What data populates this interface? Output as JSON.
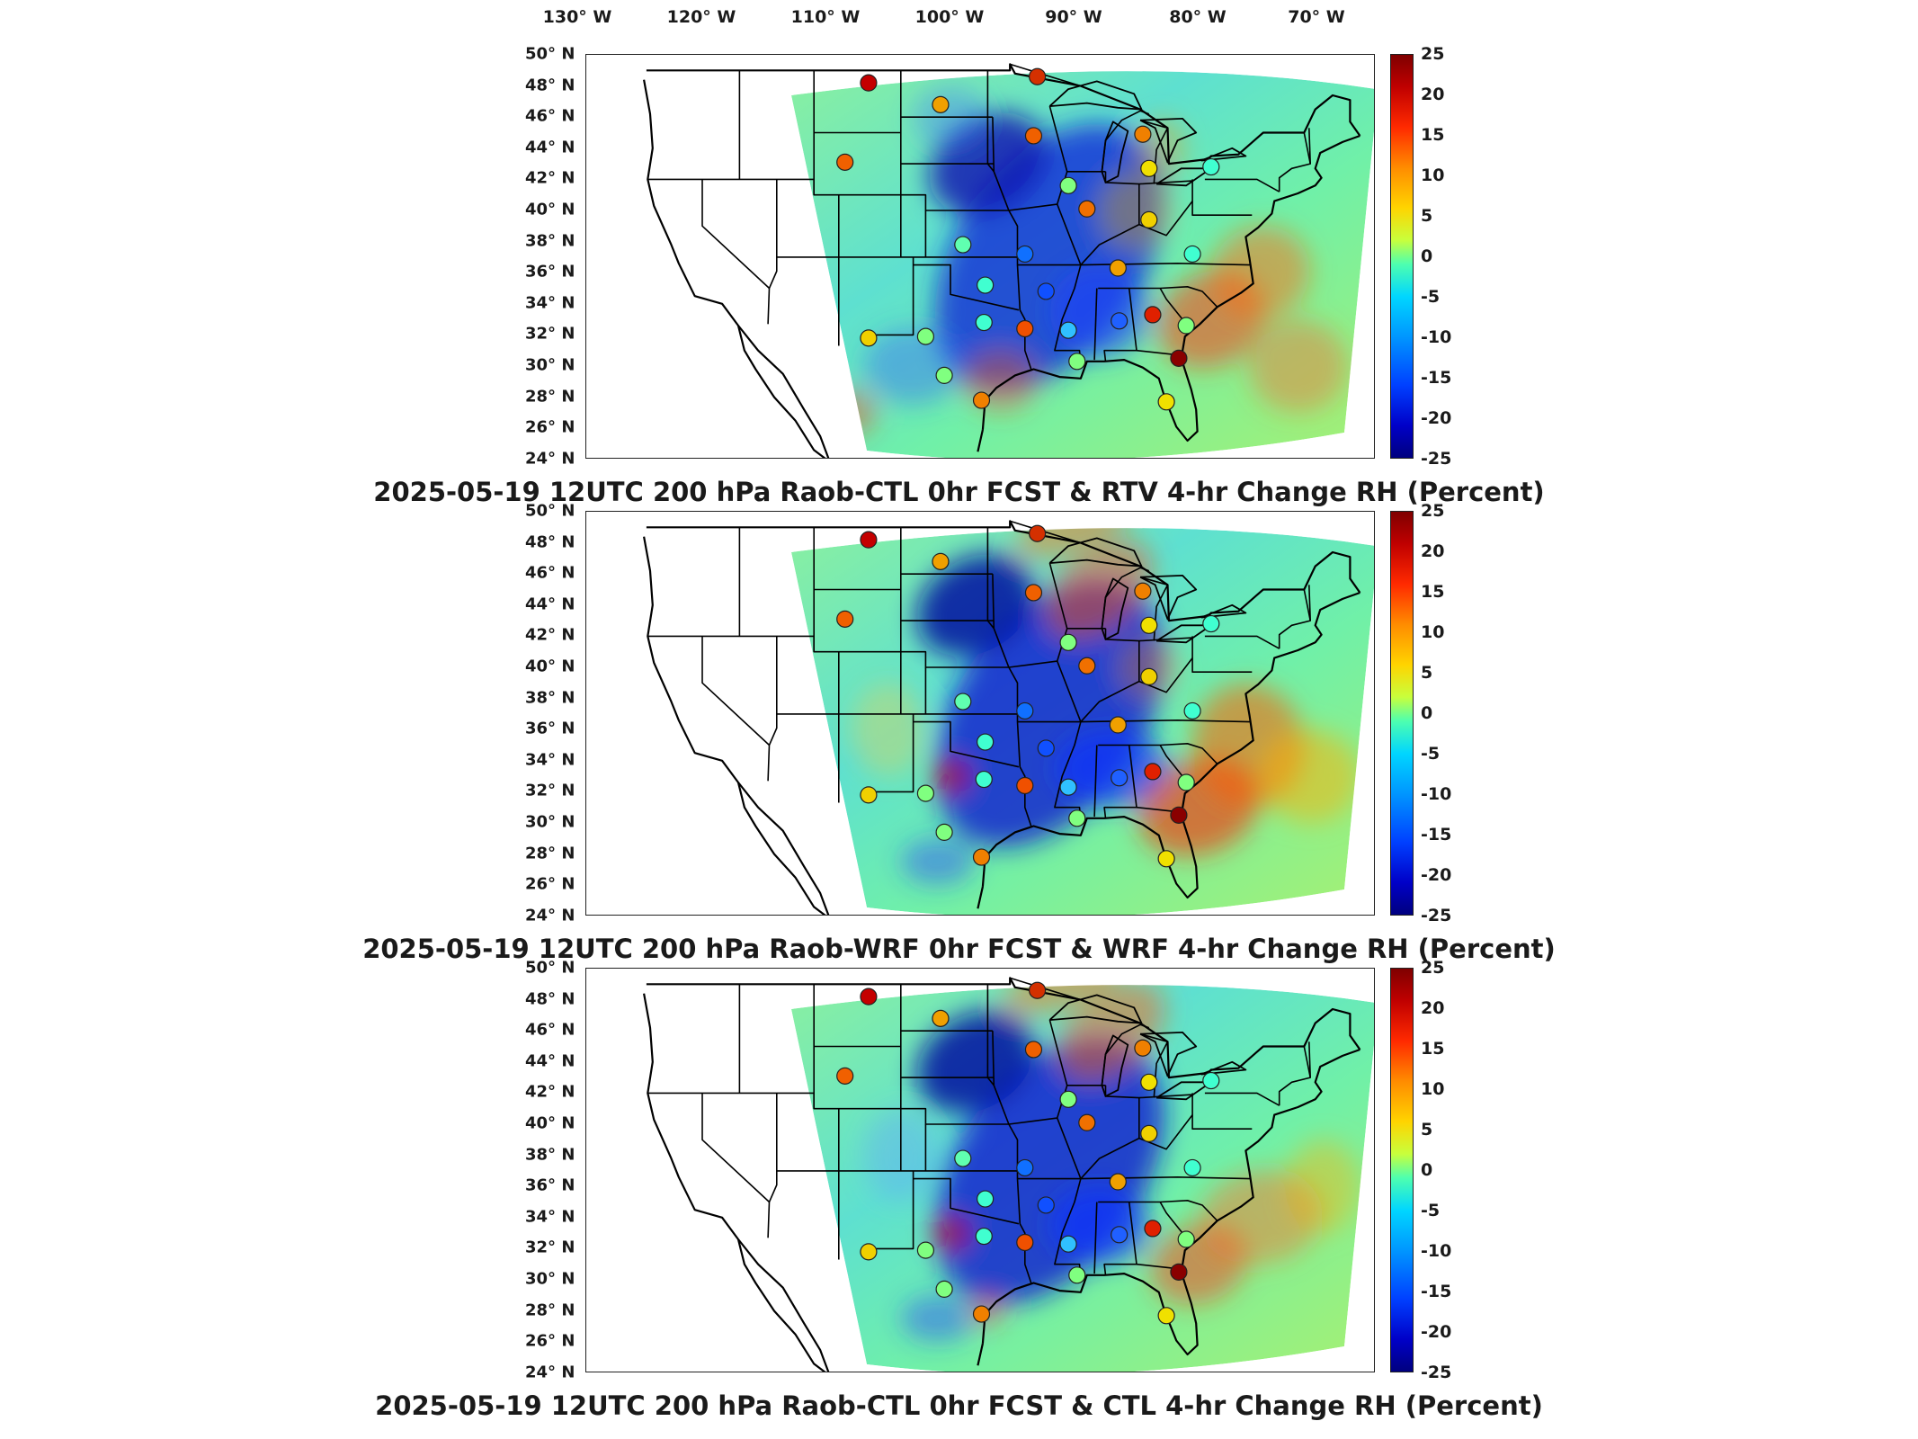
{
  "longitude_labels": [
    "130° W",
    "120° W",
    "110° W",
    "100° W",
    "90° W",
    "80° W",
    "70° W"
  ],
  "latitude_labels": [
    "50° N",
    "48° N",
    "46° N",
    "44° N",
    "42° N",
    "40° N",
    "38° N",
    "36° N",
    "34° N",
    "32° N",
    "30° N",
    "28° N",
    "26° N",
    "24° N"
  ],
  "colorbar_ticks": [
    "25",
    "20",
    "15",
    "10",
    "5",
    "0",
    "-5",
    "-10",
    "-15",
    "-20",
    "-25"
  ],
  "colormap": {
    "max_color": "#7f0000",
    "mid_color": "#4dffb0",
    "min_color": "#00007f"
  },
  "panels": [
    {
      "title": "2025-05-19 12UTC 200 hPa Raob-CTL 0hr FCST & RTV 4-hr Change RH (Percent)"
    },
    {
      "title": "2025-05-19 12UTC 200 hPa Raob-WRF 0hr FCST & WRF 4-hr Change RH (Percent)"
    },
    {
      "title": "2025-05-19 12UTC 200 hPa Raob-CTL 0hr FCST & CTL 4-hr Change RH (Percent)"
    }
  ],
  "raob_stations": [
    {
      "lon": -106.6,
      "lat": 48.2,
      "color": "#c40000"
    },
    {
      "lon": -93.0,
      "lat": 48.6,
      "color": "#d43000"
    },
    {
      "lon": -100.8,
      "lat": 46.8,
      "color": "#f0a000"
    },
    {
      "lon": -93.3,
      "lat": 44.8,
      "color": "#f06000"
    },
    {
      "lon": -84.5,
      "lat": 44.9,
      "color": "#f08000"
    },
    {
      "lon": -108.5,
      "lat": 43.1,
      "color": "#f06000"
    },
    {
      "lon": -84.0,
      "lat": 42.7,
      "color": "#f0e000"
    },
    {
      "lon": -79.0,
      "lat": 42.8,
      "color": "#40ffd0"
    },
    {
      "lon": -90.5,
      "lat": 41.6,
      "color": "#80ff80"
    },
    {
      "lon": -89.0,
      "lat": 40.1,
      "color": "#f07000"
    },
    {
      "lon": -84.0,
      "lat": 39.4,
      "color": "#f0d000"
    },
    {
      "lon": -99.0,
      "lat": 37.8,
      "color": "#60ffb0"
    },
    {
      "lon": -94.0,
      "lat": 37.2,
      "color": "#1070ff"
    },
    {
      "lon": -86.5,
      "lat": 36.3,
      "color": "#f0a000"
    },
    {
      "lon": -80.5,
      "lat": 37.2,
      "color": "#40ffd0"
    },
    {
      "lon": -97.2,
      "lat": 35.2,
      "color": "#40ffd0"
    },
    {
      "lon": -92.3,
      "lat": 34.8,
      "color": "#1050ff"
    },
    {
      "lon": -83.7,
      "lat": 33.3,
      "color": "#e02000"
    },
    {
      "lon": -81.0,
      "lat": 32.6,
      "color": "#80ff80"
    },
    {
      "lon": -86.4,
      "lat": 32.9,
      "color": "#2060ff"
    },
    {
      "lon": -90.5,
      "lat": 32.3,
      "color": "#30c0ff"
    },
    {
      "lon": -94.0,
      "lat": 32.4,
      "color": "#f05000"
    },
    {
      "lon": -97.3,
      "lat": 32.8,
      "color": "#40ffd0"
    },
    {
      "lon": -102.0,
      "lat": 31.9,
      "color": "#80ff80"
    },
    {
      "lon": -106.6,
      "lat": 31.8,
      "color": "#f0d000"
    },
    {
      "lon": -100.5,
      "lat": 29.4,
      "color": "#80ff80"
    },
    {
      "lon": -97.5,
      "lat": 27.8,
      "color": "#f08000"
    },
    {
      "lon": -89.8,
      "lat": 30.3,
      "color": "#80ff80"
    },
    {
      "lon": -81.6,
      "lat": 30.5,
      "color": "#8a0000"
    },
    {
      "lon": -82.6,
      "lat": 27.7,
      "color": "#f0e000"
    }
  ]
}
